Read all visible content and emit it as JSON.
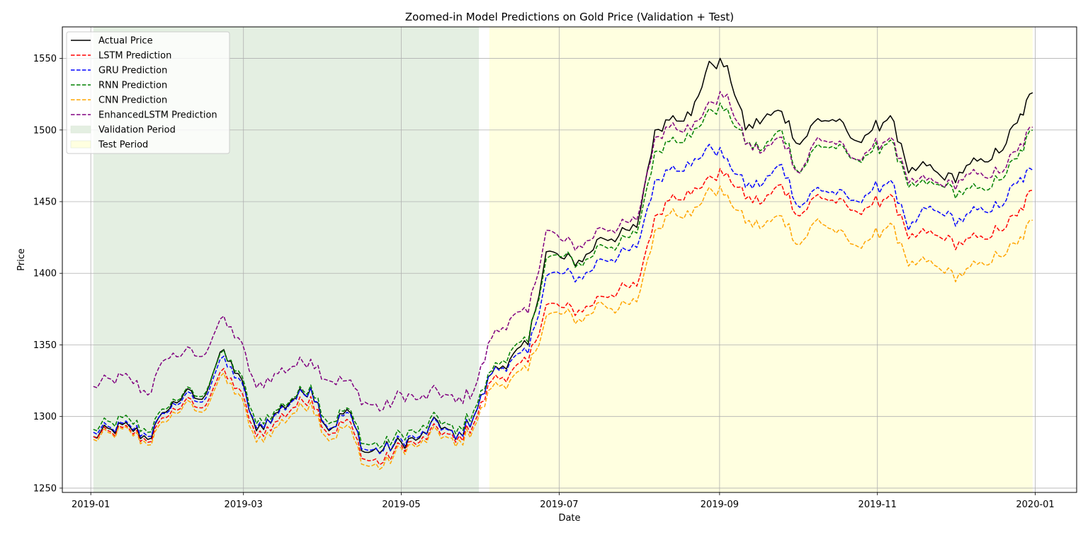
{
  "chart_data": {
    "type": "line",
    "title": "Zoomed-in Model Predictions on Gold Price (Validation + Test)",
    "xlabel": "Date",
    "ylabel": "Price",
    "xlim": [
      "2018-12-21",
      "2020-01-17"
    ],
    "ylim": [
      1247,
      1572
    ],
    "x_ticks": [
      "2019-01-01",
      "2019-03-01",
      "2019-05-01",
      "2019-07-01",
      "2019-09-01",
      "2019-11-01",
      "2020-01-01"
    ],
    "x_tick_labels": [
      "2019-01",
      "2019-03",
      "2019-05",
      "2019-07",
      "2019-09",
      "2019-11",
      "2020-01"
    ],
    "y_ticks": [
      1250,
      1300,
      1350,
      1400,
      1450,
      1500,
      1550
    ],
    "grid": true,
    "legend_position": "top-left",
    "shaded_regions": [
      {
        "name": "Validation Period",
        "start": "2019-01-02",
        "end": "2019-05-31",
        "color": "#e4efe2"
      },
      {
        "name": "Test Period",
        "start": "2019-06-04",
        "end": "2019-12-31",
        "color": "#ffffe0"
      }
    ],
    "x": [
      "2019-01-02",
      "2019-01-09",
      "2019-01-16",
      "2019-01-23",
      "2019-01-30",
      "2019-02-06",
      "2019-02-13",
      "2019-02-20",
      "2019-02-27",
      "2019-03-06",
      "2019-03-13",
      "2019-03-20",
      "2019-03-27",
      "2019-04-03",
      "2019-04-10",
      "2019-04-17",
      "2019-04-24",
      "2019-05-01",
      "2019-05-08",
      "2019-05-15",
      "2019-05-22",
      "2019-05-29",
      "2019-06-05",
      "2019-06-12",
      "2019-06-19",
      "2019-06-26",
      "2019-07-03",
      "2019-07-10",
      "2019-07-17",
      "2019-07-24",
      "2019-07-31",
      "2019-08-07",
      "2019-08-14",
      "2019-08-21",
      "2019-08-28",
      "2019-09-04",
      "2019-09-11",
      "2019-09-18",
      "2019-09-25",
      "2019-10-02",
      "2019-10-09",
      "2019-10-16",
      "2019-10-23",
      "2019-10-30",
      "2019-11-06",
      "2019-11-13",
      "2019-11-20",
      "2019-11-27",
      "2019-12-04",
      "2019-12-11",
      "2019-12-18",
      "2019-12-25",
      "2019-12-31"
    ],
    "series": [
      {
        "name": "Actual Price",
        "color": "#000000",
        "dashed": false,
        "values": [
          1286,
          1291,
          1293,
          1284,
          1303,
          1316,
          1312,
          1345,
          1330,
          1290,
          1302,
          1312,
          1320,
          1290,
          1305,
          1275,
          1277,
          1282,
          1285,
          1297,
          1284,
          1300,
          1330,
          1340,
          1350,
          1415,
          1410,
          1408,
          1425,
          1426,
          1432,
          1500,
          1510,
          1510,
          1548,
          1545,
          1500,
          1508,
          1513,
          1490,
          1508,
          1506,
          1493,
          1500,
          1510,
          1470,
          1475,
          1465,
          1470,
          1480,
          1484,
          1505,
          1526
        ]
      },
      {
        "name": "LSTM Prediction",
        "color": "#ff0000",
        "dashed": true,
        "values": [
          1286,
          1289,
          1291,
          1282,
          1299,
          1310,
          1306,
          1331,
          1320,
          1286,
          1296,
          1306,
          1314,
          1287,
          1298,
          1270,
          1268,
          1280,
          1282,
          1292,
          1282,
          1295,
          1325,
          1330,
          1338,
          1378,
          1376,
          1373,
          1384,
          1388,
          1391,
          1440,
          1455,
          1455,
          1468,
          1470,
          1452,
          1450,
          1462,
          1440,
          1455,
          1449,
          1444,
          1448,
          1455,
          1424,
          1428,
          1423,
          1420,
          1426,
          1430,
          1440,
          1458
        ]
      },
      {
        "name": "GRU Prediction",
        "color": "#0000ff",
        "dashed": true,
        "values": [
          1289,
          1292,
          1294,
          1286,
          1302,
          1314,
          1310,
          1340,
          1327,
          1292,
          1301,
          1311,
          1320,
          1291,
          1303,
          1277,
          1276,
          1284,
          1286,
          1296,
          1284,
          1300,
          1330,
          1338,
          1344,
          1398,
          1400,
          1396,
          1410,
          1412,
          1418,
          1465,
          1475,
          1475,
          1490,
          1480,
          1460,
          1463,
          1476,
          1446,
          1460,
          1455,
          1451,
          1458,
          1465,
          1430,
          1445,
          1440,
          1436,
          1446,
          1446,
          1463,
          1472
        ]
      },
      {
        "name": "RNN Prediction",
        "color": "#008000",
        "dashed": true,
        "values": [
          1291,
          1296,
          1298,
          1289,
          1305,
          1317,
          1314,
          1344,
          1332,
          1295,
          1304,
          1313,
          1322,
          1295,
          1306,
          1281,
          1280,
          1288,
          1290,
          1300,
          1288,
          1304,
          1332,
          1345,
          1352,
          1410,
          1412,
          1405,
          1420,
          1420,
          1428,
          1485,
          1495,
          1495,
          1515,
          1515,
          1490,
          1487,
          1500,
          1470,
          1490,
          1487,
          1480,
          1485,
          1493,
          1460,
          1462,
          1460,
          1455,
          1460,
          1465,
          1480,
          1500
        ]
      },
      {
        "name": "CNN Prediction",
        "color": "#ffa500",
        "dashed": true,
        "values": [
          1284,
          1288,
          1290,
          1280,
          1296,
          1308,
          1303,
          1328,
          1316,
          1282,
          1292,
          1302,
          1310,
          1283,
          1294,
          1266,
          1265,
          1278,
          1280,
          1290,
          1279,
          1292,
          1320,
          1325,
          1332,
          1370,
          1372,
          1366,
          1380,
          1375,
          1380,
          1430,
          1445,
          1440,
          1460,
          1455,
          1435,
          1433,
          1440,
          1420,
          1438,
          1428,
          1420,
          1425,
          1435,
          1405,
          1408,
          1400,
          1398,
          1408,
          1412,
          1420,
          1437
        ]
      },
      {
        "name": "EnhancedLSTM Prediction",
        "color": "#800080",
        "dashed": true,
        "values": [
          1321,
          1326,
          1327,
          1315,
          1340,
          1345,
          1342,
          1368,
          1355,
          1320,
          1330,
          1335,
          1340,
          1325,
          1325,
          1310,
          1305,
          1316,
          1312,
          1318,
          1310,
          1318,
          1355,
          1368,
          1372,
          1430,
          1422,
          1418,
          1432,
          1432,
          1437,
          1495,
          1505,
          1500,
          1520,
          1525,
          1490,
          1485,
          1495,
          1470,
          1495,
          1490,
          1480,
          1488,
          1495,
          1463,
          1465,
          1460,
          1465,
          1470,
          1470,
          1485,
          1502
        ]
      }
    ]
  },
  "legend": {
    "items": [
      {
        "label": "Actual Price",
        "kind": "line",
        "color": "#000000",
        "dashed": false
      },
      {
        "label": "LSTM Prediction",
        "kind": "line",
        "color": "#ff0000",
        "dashed": true
      },
      {
        "label": "GRU Prediction",
        "kind": "line",
        "color": "#0000ff",
        "dashed": true
      },
      {
        "label": "RNN Prediction",
        "kind": "line",
        "color": "#008000",
        "dashed": true
      },
      {
        "label": "CNN Prediction",
        "kind": "line",
        "color": "#ffa500",
        "dashed": true
      },
      {
        "label": "EnhancedLSTM Prediction",
        "kind": "line",
        "color": "#800080",
        "dashed": true
      },
      {
        "label": "Validation Period",
        "kind": "patch",
        "color": "#e4efe2"
      },
      {
        "label": "Test Period",
        "kind": "patch",
        "color": "#ffffe0"
      }
    ]
  }
}
